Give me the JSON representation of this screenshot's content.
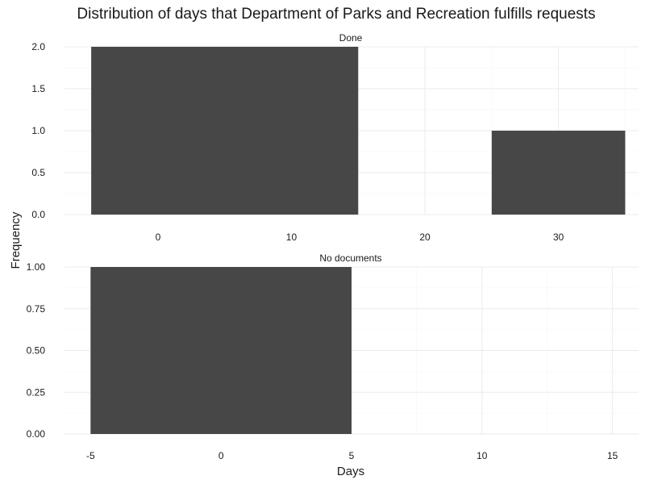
{
  "chart_data": {
    "type": "bar",
    "title": "Distribution of days that Department of Parks and Recreation fulfills requests",
    "xlabel": "Days",
    "ylabel": "Frequency",
    "grid": true,
    "legend": "none",
    "bar_color": "#474747",
    "panels": [
      {
        "label": "Done",
        "xlim": [
          -7,
          36
        ],
        "ylim": [
          0,
          2
        ],
        "x_ticks": [
          "0",
          "10",
          "20",
          "30"
        ],
        "x_tick_values": [
          0,
          10,
          20,
          30
        ],
        "y_ticks": [
          "0.0",
          "0.5",
          "1.0",
          "1.5",
          "2.0"
        ],
        "y_tick_values": [
          0,
          0.5,
          1,
          1.5,
          2
        ],
        "bins": [
          {
            "x0": -5,
            "x1": 15,
            "count": 2
          },
          {
            "x0": 25,
            "x1": 35,
            "count": 1
          }
        ]
      },
      {
        "label": "No documents",
        "xlim": [
          -6,
          16
        ],
        "ylim": [
          0,
          1
        ],
        "x_ticks": [
          "-5",
          "0",
          "5",
          "10",
          "15"
        ],
        "x_tick_values": [
          -5,
          0,
          5,
          10,
          15
        ],
        "y_ticks": [
          "0.00",
          "0.25",
          "0.50",
          "0.75",
          "1.00"
        ],
        "y_tick_values": [
          0,
          0.25,
          0.5,
          0.75,
          1
        ],
        "bins": [
          {
            "x0": -5,
            "x1": 5,
            "count": 1
          }
        ]
      }
    ]
  }
}
